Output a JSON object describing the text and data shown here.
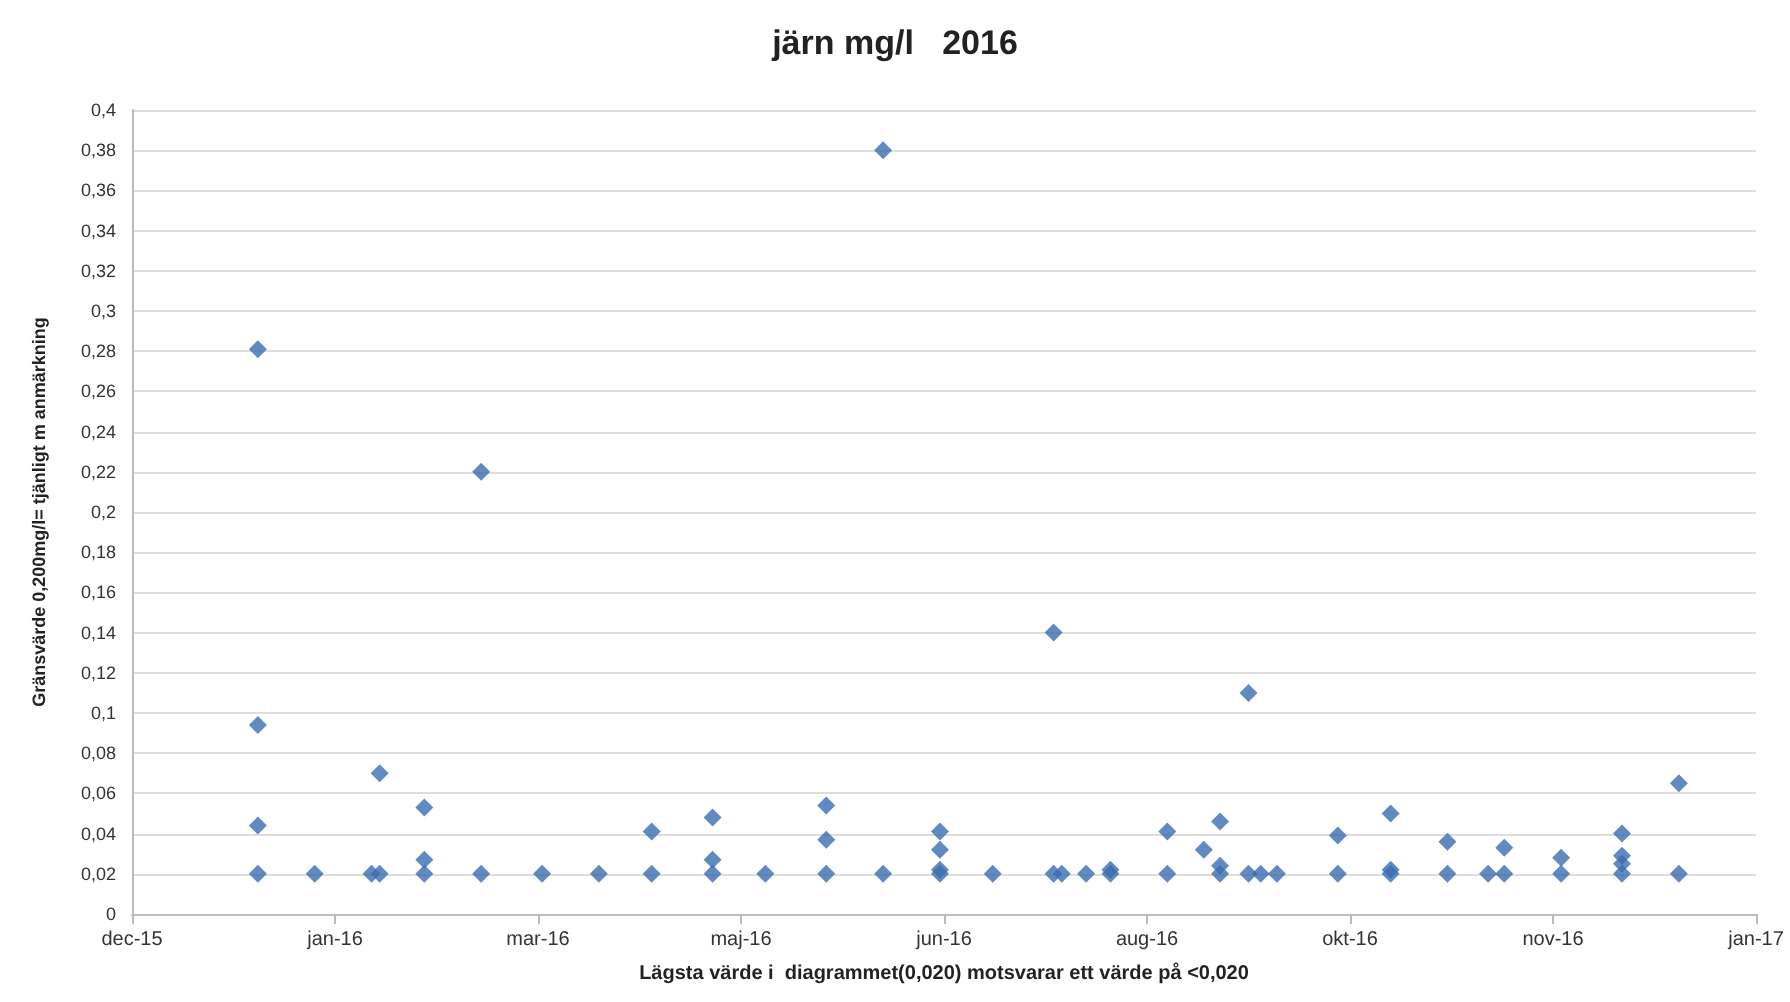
{
  "chart_data": {
    "type": "scatter",
    "title": "järn mg/l   2016",
    "xlabel": "Lägsta värde i  diagrammet(0,020) motsvarar ett värde på <0,020",
    "ylabel": "Gränsvärde 0,200mg/l= tjänligt m anmärkning",
    "series": [
      {
        "color": "#3a6db0",
        "x": [
          "2016-01-06",
          "2016-01-06",
          "2016-01-06",
          "2016-01-06",
          "2016-01-20",
          "2016-02-03",
          "2016-02-05",
          "2016-02-05",
          "2016-02-16",
          "2016-02-16",
          "2016-02-16",
          "2016-03-01",
          "2016-03-01",
          "2016-03-16",
          "2016-03-30",
          "2016-04-12",
          "2016-04-12",
          "2016-04-27",
          "2016-04-27",
          "2016-04-27",
          "2016-05-10",
          "2016-05-25",
          "2016-05-25",
          "2016-05-25",
          "2016-06-08",
          "2016-06-08",
          "2016-06-22",
          "2016-06-22",
          "2016-06-22",
          "2016-06-22",
          "2016-07-05",
          "2016-07-20",
          "2016-07-20",
          "2016-07-22",
          "2016-07-28",
          "2016-08-03",
          "2016-08-03",
          "2016-08-17",
          "2016-08-17",
          "2016-08-26",
          "2016-08-30",
          "2016-08-30",
          "2016-08-30",
          "2016-09-06",
          "2016-09-06",
          "2016-09-09",
          "2016-09-13",
          "2016-09-28",
          "2016-09-28",
          "2016-10-11",
          "2016-10-11",
          "2016-10-11",
          "2016-10-25",
          "2016-10-25",
          "2016-11-04",
          "2016-11-08",
          "2016-11-08",
          "2016-11-22",
          "2016-11-22",
          "2016-12-07",
          "2016-12-07",
          "2016-12-07",
          "2016-12-07",
          "2016-12-21",
          "2016-12-21"
        ],
        "values": [
          0.281,
          0.094,
          0.044,
          0.02,
          0.02,
          0.02,
          0.07,
          0.02,
          0.053,
          0.027,
          0.02,
          0.22,
          0.02,
          0.02,
          0.02,
          0.041,
          0.02,
          0.048,
          0.027,
          0.02,
          0.02,
          0.054,
          0.037,
          0.02,
          0.38,
          0.02,
          0.041,
          0.032,
          0.022,
          0.02,
          0.02,
          0.14,
          0.02,
          0.02,
          0.02,
          0.022,
          0.02,
          0.041,
          0.02,
          0.032,
          0.046,
          0.024,
          0.02,
          0.11,
          0.02,
          0.02,
          0.02,
          0.039,
          0.02,
          0.05,
          0.022,
          0.02,
          0.036,
          0.02,
          0.02,
          0.033,
          0.02,
          0.028,
          0.02,
          0.04,
          0.029,
          0.025,
          0.02,
          0.065,
          0.02
        ]
      }
    ],
    "xlim": [
      "2015-12-06",
      "2017-01-09"
    ],
    "xticks": [
      {
        "value": "2015-12-06",
        "label": "dec-15"
      },
      {
        "value": "2016-01-25",
        "label": "jan-16"
      },
      {
        "value": "2016-03-15",
        "label": "mar-16"
      },
      {
        "value": "2016-05-04",
        "label": "maj-16"
      },
      {
        "value": "2016-06-23",
        "label": "jun-16"
      },
      {
        "value": "2016-08-12",
        "label": "aug-16"
      },
      {
        "value": "2016-10-01",
        "label": "okt-16"
      },
      {
        "value": "2016-11-20",
        "label": "nov-16"
      },
      {
        "value": "2017-01-09",
        "label": "jan-17"
      }
    ],
    "ylim": [
      0,
      0.4
    ],
    "yticks": [
      {
        "value": 0,
        "label": "0"
      },
      {
        "value": 0.02,
        "label": "0,02"
      },
      {
        "value": 0.04,
        "label": "0,04"
      },
      {
        "value": 0.06,
        "label": "0,06"
      },
      {
        "value": 0.08,
        "label": "0,08"
      },
      {
        "value": 0.1,
        "label": "0,1"
      },
      {
        "value": 0.12,
        "label": "0,12"
      },
      {
        "value": 0.14,
        "label": "0,14"
      },
      {
        "value": 0.16,
        "label": "0,16"
      },
      {
        "value": 0.18,
        "label": "0,18"
      },
      {
        "value": 0.2,
        "label": "0,2"
      },
      {
        "value": 0.22,
        "label": "0,22"
      },
      {
        "value": 0.24,
        "label": "0,24"
      },
      {
        "value": 0.26,
        "label": "0,26"
      },
      {
        "value": 0.28,
        "label": "0,28"
      },
      {
        "value": 0.3,
        "label": "0,3"
      },
      {
        "value": 0.32,
        "label": "0,32"
      },
      {
        "value": 0.34,
        "label": "0,34"
      },
      {
        "value": 0.36,
        "label": "0,36"
      },
      {
        "value": 0.38,
        "label": "0,38"
      },
      {
        "value": 0.4,
        "label": "0,4"
      }
    ],
    "grid": "y",
    "marker": "diamond"
  }
}
